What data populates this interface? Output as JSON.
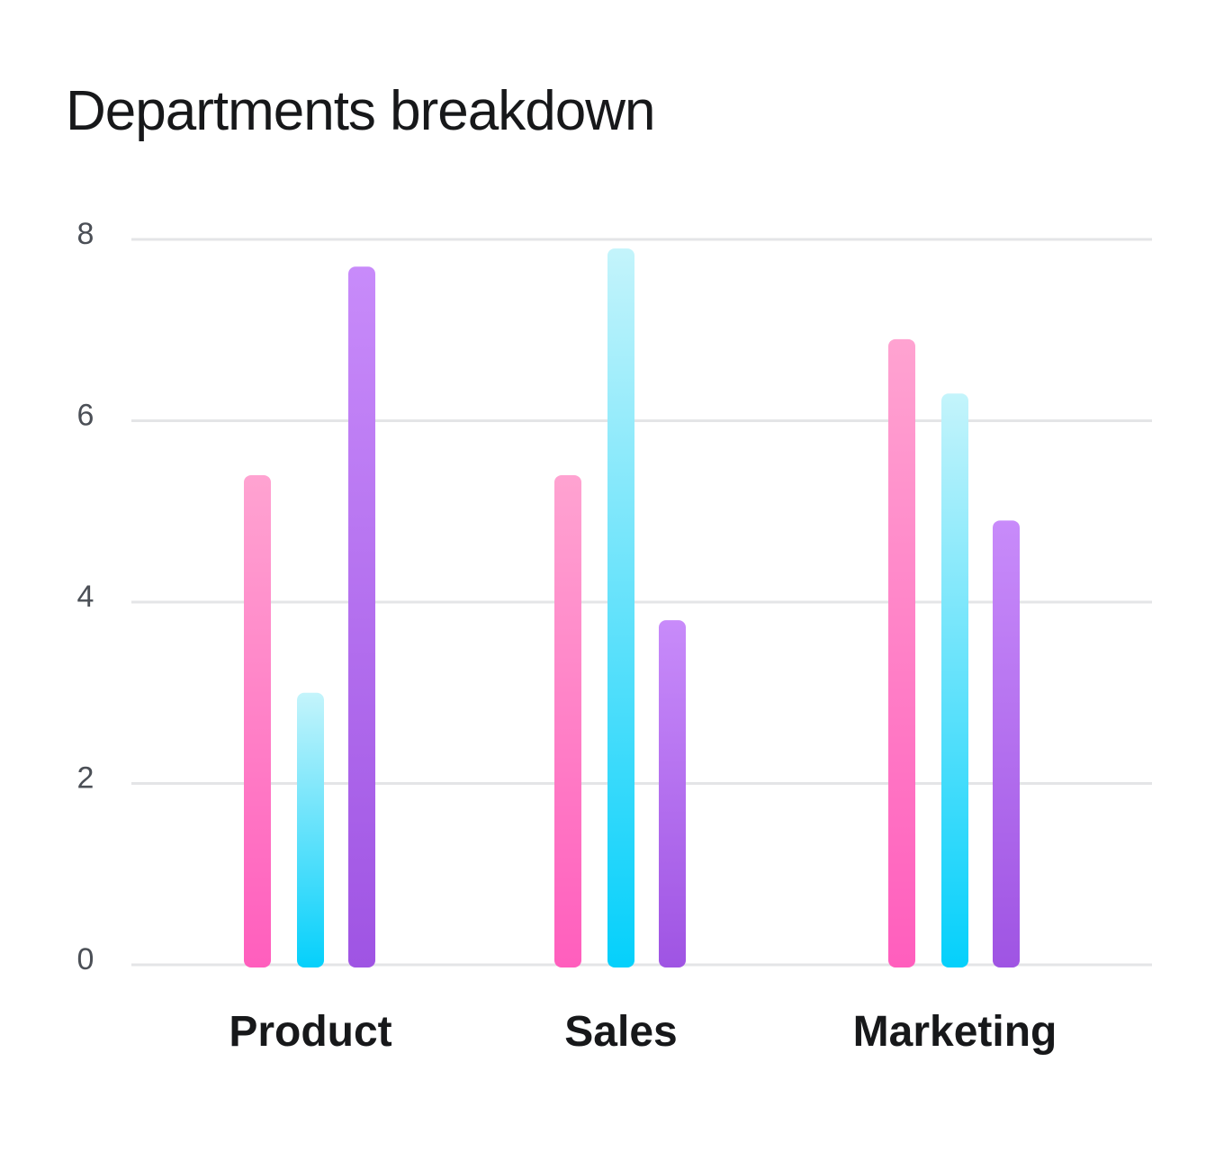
{
  "chart_data": {
    "type": "bar",
    "title": "Departments breakdown",
    "xlabel": "",
    "ylabel": "",
    "categories": [
      "Product",
      "Sales",
      "Marketing"
    ],
    "series": [
      {
        "values": [
          5.4,
          5.4,
          6.9
        ]
      },
      {
        "values": [
          3.0,
          7.9,
          6.3
        ]
      },
      {
        "values": [
          7.7,
          3.8,
          4.9
        ]
      }
    ],
    "ylim": [
      0,
      8
    ],
    "yticks": [
      "0",
      "2",
      "4",
      "6",
      "8"
    ],
    "grid": true,
    "legend": "none"
  },
  "colors": {
    "series_top": [
      "#ffa3d1",
      "#c4f4fb",
      "#c88bfa"
    ],
    "series_bottom": [
      "#ff5ebd",
      "#05d0fb",
      "#9f54e3"
    ],
    "grid": "#e4e5e7"
  }
}
